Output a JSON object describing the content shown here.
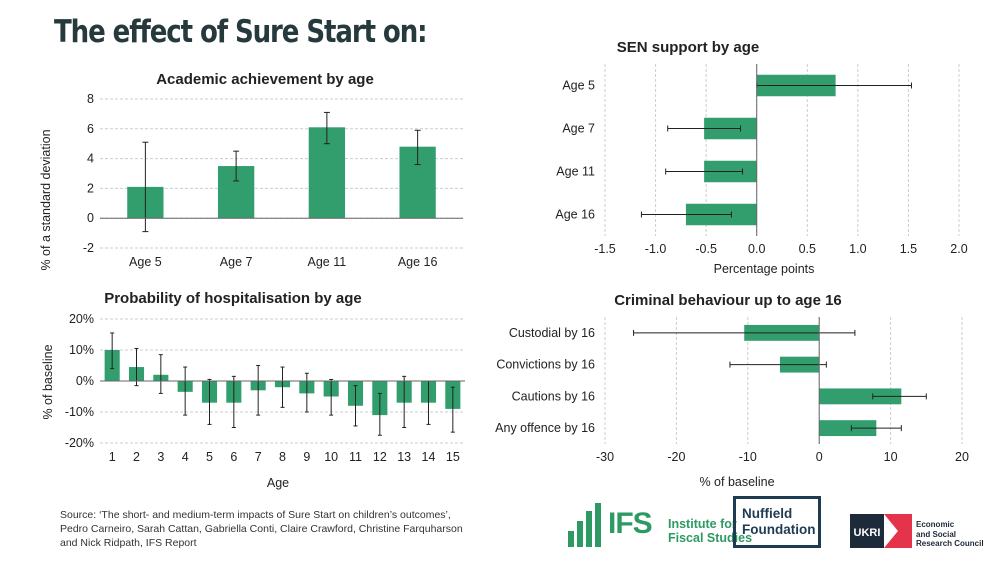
{
  "page": {
    "title": "The effect of Sure Start on:",
    "source_line1": "Source: ‘The short- and medium-term impacts of Sure Start on children’s outcomes’,",
    "source_line2": "Pedro Carneiro, Sarah Cattan, Gabriella Conti, Claire Crawford, Christine Farquharson",
    "source_line3": "and Nick Ridpath, IFS Report",
    "logo_ifs_mark": "IFS",
    "logo_ifs_line1": "Institute for",
    "logo_ifs_line2": "Fiscal Studies",
    "logo_nuffield_line1": "Nuffield",
    "logo_nuffield_line2": "Foundation",
    "logo_ukri_mark": "UKRI",
    "logo_esrc_line1": "Economic",
    "logo_esrc_line2": "and Social",
    "logo_esrc_line3": "Research Council"
  },
  "colors": {
    "bar": "#339e6d",
    "grid": "#cccccc",
    "error": "#222222",
    "ifs": "#2e9a63",
    "nuffield": "#1f3b52",
    "ukri": "#e5334b"
  },
  "chart_data": [
    {
      "type": "bar",
      "title": "Academic achievement by age",
      "ylabel": "% of a standard deviation",
      "xlabel": "",
      "categories": [
        "Age 5",
        "Age 7",
        "Age 11",
        "Age 16"
      ],
      "values": [
        2.1,
        3.5,
        6.1,
        4.8
      ],
      "error_low": [
        -0.9,
        2.5,
        5.0,
        3.6
      ],
      "error_high": [
        5.1,
        4.5,
        7.1,
        5.9
      ],
      "ylim": [
        -2,
        8
      ],
      "yticks": [
        "-2",
        "0",
        "2",
        "4",
        "6",
        "8"
      ],
      "grid": true
    },
    {
      "type": "bar",
      "title": "Probability of hospitalisation by age",
      "ylabel": "% of baseline",
      "xlabel": "Age",
      "categories": [
        "1",
        "2",
        "3",
        "4",
        "5",
        "6",
        "7",
        "8",
        "9",
        "10",
        "11",
        "12",
        "13",
        "14",
        "15"
      ],
      "values": [
        10,
        4.5,
        2,
        -3.5,
        -7,
        -7,
        -3,
        -2,
        -4,
        -5,
        -8,
        -11,
        -7,
        -7,
        -9
      ],
      "error_low": [
        4,
        -1.5,
        -4,
        -11,
        -14,
        -15,
        -11,
        -8.5,
        -10,
        -11,
        -14.5,
        -17.5,
        -15,
        -14,
        -16.5
      ],
      "error_high": [
        15.5,
        10.5,
        8.5,
        4.5,
        0.5,
        1.5,
        5,
        4.5,
        2.5,
        0.5,
        -1.5,
        -4,
        1.5,
        0,
        -2
      ],
      "ylim": [
        -20,
        20
      ],
      "yticks": [
        "-20%",
        "-10%",
        "0%",
        "10%",
        "20%"
      ],
      "grid": true
    },
    {
      "type": "bar",
      "orientation": "horizontal",
      "title": "SEN support by age",
      "xlabel": "Percentage points",
      "ylabel": "",
      "categories": [
        "Age 5",
        "Age 7",
        "Age 11",
        "Age 16"
      ],
      "values": [
        0.78,
        -0.52,
        -0.52,
        -0.7
      ],
      "error_low": [
        0.0,
        -0.88,
        -0.9,
        -1.14
      ],
      "error_high": [
        1.53,
        -0.16,
        -0.14,
        -0.25
      ],
      "xlim": [
        -1.5,
        2.0
      ],
      "xticks": [
        "-1.5",
        "-1.0",
        "-0.5",
        "0.0",
        "0.5",
        "1.0",
        "1.5",
        "2.0"
      ],
      "grid": true
    },
    {
      "type": "bar",
      "orientation": "horizontal",
      "title": "Criminal behaviour up to age 16",
      "xlabel": "% of baseline",
      "ylabel": "",
      "categories": [
        "Custodial by 16",
        "Convictions by 16",
        "Cautions by 16",
        "Any offence by 16"
      ],
      "values": [
        -10.5,
        -5.5,
        11.5,
        8
      ],
      "error_low": [
        -26,
        -12.5,
        7.5,
        4.5
      ],
      "error_high": [
        5,
        1,
        15,
        11.5
      ],
      "xlim": [
        -30,
        20
      ],
      "xticks": [
        "-30",
        "-20",
        "-10",
        "0",
        "10",
        "20"
      ],
      "grid": true
    }
  ]
}
